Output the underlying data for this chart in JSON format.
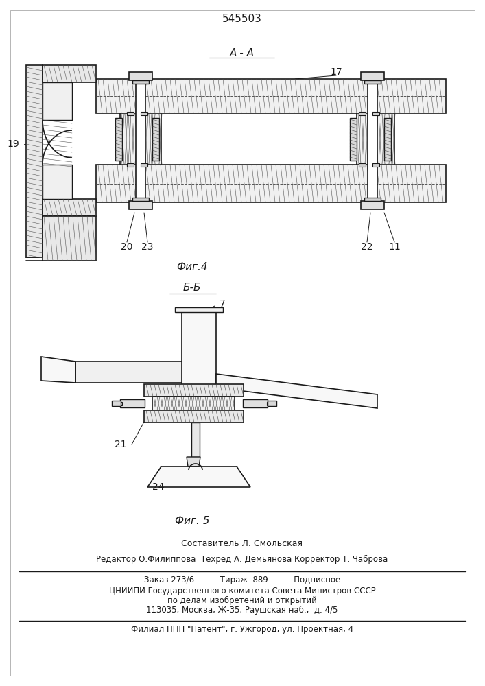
{
  "patent_number": "545503",
  "fig4_label": "А-А",
  "fig4_caption": "Фиг.4",
  "fig5_label": "Б-Б",
  "fig5_caption": "Фиг. 5",
  "label_19": "19",
  "label_17": "17",
  "label_20": "20",
  "label_23": "23",
  "label_22": "22",
  "label_11": "11",
  "label_7": "7",
  "label_21": "21",
  "label_24": "24",
  "author_line": "Составитель Л. Смольская",
  "editor_line": "Редактор О.Филиппова  Техред А. Демьянова Корректор Т. Чаброва",
  "order_line": "Заказ 273/6          Тираж  889          Подписное",
  "org_line1": "ЦНИИПИ Государственного комитета Совета Министров СССР",
  "org_line2": "по делам изобретений и открытий",
  "org_line3": "113035, Москва, Ж-35, Раушская наб.,  д. 4/5",
  "affiliate_line": "Филиал ППП \"Патент\", г. Ужгород, ул. Проектная, 4",
  "bg_color": "#ffffff",
  "line_color": "#1a1a1a"
}
